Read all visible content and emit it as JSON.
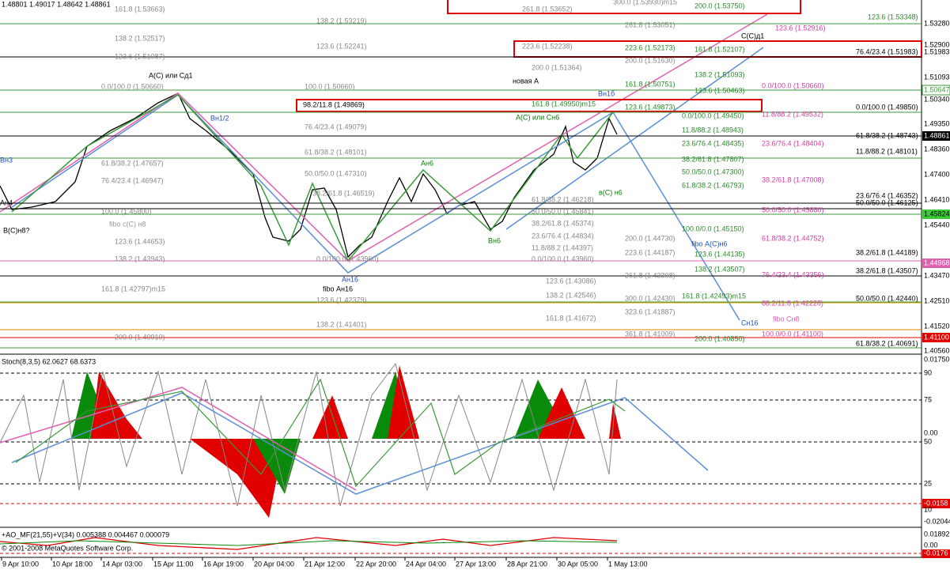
{
  "header": "1.48801 1.49017 1.48642 1.48861",
  "price_axis": [
    "1.53280",
    "1.52900",
    "1.51983",
    "1.51093",
    "1.50647",
    "1.50340",
    "1.49350",
    "1.48861",
    "1.48360",
    "1.47400",
    "1.46410",
    "1.45824",
    "1.45440",
    "1.44968",
    "1.43470",
    "1.42510",
    "1.41520",
    "1.41100",
    "1.40560"
  ],
  "wave_labels": [
    "A(C) или Сд1",
    "С(С)д1",
    "новая А",
    "Вн1б",
    "A(C) или Сн6",
    "Вн1/2",
    "Ан6",
    "Вн6",
    "в(С) н6",
    "Ан16",
    "fibo Ан16",
    "Сн16",
    "fibo Сн8",
    "fibo А(С)н6",
    "fibo с(С) н8",
    "В(С)н8?",
    "Ан4",
    "Вн3"
  ],
  "fibo_gray": [
    "161.8 (1.53663)",
    "138.2 (1.52517)",
    "123.6 (1.51087)",
    "0.0/100.0 (1.50660)",
    "61.8/38.2 (1.47657)",
    "76.4/23.4 (1.46947)",
    "100.0 (1.45800)",
    "123.6 (1.44653)",
    "138.2 (1.43943)",
    "161.8 (1.42797)m15",
    "200.0 (1.40910)",
    "138.2 (1.53219)",
    "123.6 (1.52241)",
    "100.0 (1.50660)",
    "76.4/23.4 (1.49079)",
    "61.8/38.2 (1.48101)",
    "50.0/50.0 (1.47310)",
    "38.2/61.8 (1.46519)",
    "0.0/100.0 (1.43960)",
    "123.6 (1.42379)",
    "138.2 (1.41401)",
    "261.8 (1.53652)",
    "223.6 (1.52238)",
    "200.0 (1.51364)",
    "61.8/38.2 (1.46218)",
    "50.0/50.0 (1.45841)",
    "38.2/61.8 (1.45374)",
    "23.6/76.4 (1.44834)",
    "11.8/88.2 (1.44397)",
    "0.0/100.0 (1.43960)",
    "123.6 (1.43086)",
    "138.2 (1.42546)",
    "161.8 (1.41672)",
    "300.0 (1.53930)m15",
    "261.8 (1.53051)",
    "200.0 (1.51630)",
    "200.0 (1.44730)",
    "223.6 (1.44187)",
    "261.8 (1.43308)",
    "300.0 (1.42430)",
    "323.6 (1.41887)",
    "361.8 (1.41009)"
  ],
  "fibo_green": [
    "161.8 (1.49950)m15",
    "223.6 (1.52173)",
    "161.8 (1.50751)",
    "123.6 (1.49873)",
    "200.0 (1.53750)",
    "161.8 (1.52107)",
    "138.2 (1.51093)",
    "123.6 (1.50463)",
    "0.0/100.0 (1.49450)",
    "11.8/88.2 (1.48943)",
    "23.6/76.4 (1.48435)",
    "38.2/61.8 (1.47807)",
    "50.0/50.0 (1.47300)",
    "61.8/38.2 (1.46793)",
    "100.0/0.0 (1.45150)",
    "123.6 (1.44135)",
    "138.2 (1.43507)",
    "161.8 (1.42493)m15",
    "200.0 (1.40850)",
    "123.6 (1.53348)"
  ],
  "fibo_pink": [
    "123.6 (1.52916)",
    "0.0/100.0 (1.50660)",
    "11.8/88.2 (1.49532)",
    "23.6/76.4 (1.48404)",
    "38.2/61.8 (1.47008)",
    "50.0/50.0 (1.45880)",
    "61.8/38.2 (1.44752)",
    "76.4/23.4 (1.43356)",
    "88.2/11.8 (1.42228)",
    "100.0/0.0 (1.41100)"
  ],
  "fibo_black": [
    "76.4/23.4 (1.51983)",
    "0.0/100.0 (1.49850)",
    "61.8/38.2 (1.48743)",
    "11.8/88.2 (1.48101)",
    "23.6/76.4 (1.46352)",
    "50.0/50.0 (1.46125)",
    "38.2/61.8 (1.44189)",
    "38.2/61.8 (1.43507)",
    "50.0/50.0 (1.42440)",
    "61.8/38.2 (1.40691)",
    "98.2/11.8 (1.49869)"
  ],
  "stoch": {
    "label": "Stoch(8,3,5) 62.0627 68.6373",
    "axis": [
      "0.01750",
      "90",
      "75",
      "0.00",
      "50",
      "25",
      "-0.0158",
      "10",
      "-0.02044"
    ]
  },
  "ao": {
    "label": "+AO_MF(21,55)+V(34) 0.005388 0.004467 0.000079",
    "copyright": "© 2001-2008 MetaQuotes Software Corp.",
    "axis": [
      "0.01892",
      "0.00",
      "-0.0176"
    ]
  },
  "time_axis": [
    "9 Apr 10:00",
    "10 Apr 18:00",
    "14 Apr 03:00",
    "15 Apr 11:00",
    "16 Apr 19:00",
    "20 Apr 04:00",
    "21 Apr 12:00",
    "22 Apr 20:00",
    "24 Apr 04:00",
    "27 Apr 13:00",
    "28 Apr 21:00",
    "30 Apr 05:00",
    "1 May 13:00"
  ]
}
